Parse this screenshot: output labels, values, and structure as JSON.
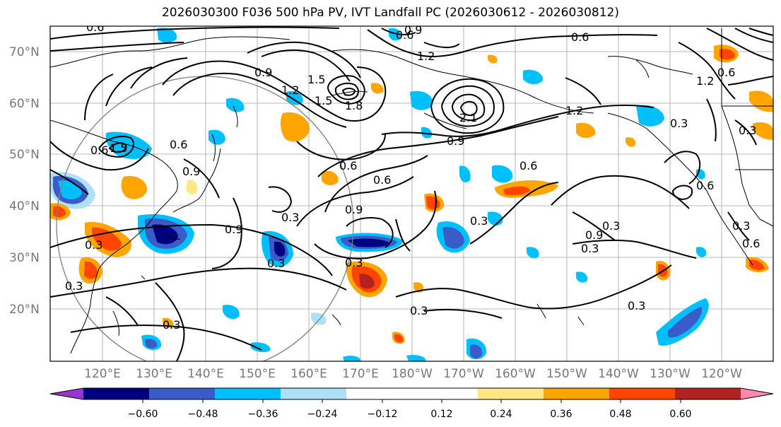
{
  "title": "2026030300 F036 500 hPa PV, IVT Landfall PC (2026030612 - 2026030812)",
  "map": {
    "lat_labels": [
      "70°N",
      "60°N",
      "50°N",
      "40°N",
      "30°N",
      "20°N"
    ],
    "lon_labels": [
      "120°E",
      "130°E",
      "140°E",
      "150°E",
      "160°E",
      "170°E",
      "180°W",
      "170°W",
      "160°W",
      "150°W",
      "140°W",
      "130°W",
      "120°W"
    ],
    "contour_labels": [
      "0.6",
      "0.9",
      "1.2",
      "1.5",
      "0.6",
      "0.9",
      "1.2",
      "1.5",
      "1.8",
      "2.1",
      "0.6",
      "0.9",
      "1.2",
      "0.6",
      "0.9",
      "0.3",
      "0.3",
      "0.3",
      "0.3",
      "0.3",
      "0.6",
      "0.3",
      "0.9",
      "0.6",
      "0.3",
      "0.9",
      "1.2",
      "0.6",
      "0.9",
      "0.3",
      "0.6",
      "0.3",
      "1.5",
      "0.3",
      "0.6",
      "0.3",
      "0.3",
      "0.3",
      "0.3",
      "0.6",
      "0.6"
    ]
  },
  "colorbar": {
    "colors": [
      "#9a33d6",
      "#000080",
      "#3a5cc8",
      "#00bfff",
      "#aee0f7",
      "#ffffff",
      "#ffffff",
      "#ffe784",
      "#ffa500",
      "#ff4500",
      "#b22222",
      "#ff88b0"
    ],
    "tick_labels": [
      "−0.60",
      "−0.48",
      "−0.36",
      "−0.24",
      "−0.12",
      "0.12",
      "0.24",
      "0.36",
      "0.48",
      "0.60"
    ]
  }
}
